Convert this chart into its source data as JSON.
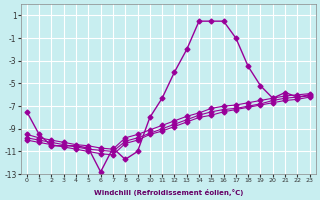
{
  "xlabel": "Windchill (Refroidissement éolien,°C)",
  "ylabel": "",
  "bg_color": "#c8eef0",
  "grid_color": "#ffffff",
  "line_color": "#990099",
  "hours": [
    0,
    1,
    2,
    3,
    4,
    5,
    6,
    7,
    8,
    9,
    10,
    11,
    12,
    13,
    14,
    15,
    16,
    17,
    18,
    19,
    20,
    21,
    22,
    23
  ],
  "main_curve": [
    -7.5,
    -9.5,
    -10.5,
    -10.5,
    -10.5,
    -10.7,
    -12.8,
    -10.7,
    -11.7,
    -11.0,
    -8.0,
    -6.3,
    -4.0,
    -2.0,
    0.5,
    0.5,
    0.5,
    -1.0,
    -3.5,
    -5.2,
    -6.3,
    -5.8,
    -6.2,
    -6.0
  ],
  "line2": [
    -9.5,
    -9.8,
    -10.0,
    -10.2,
    -10.4,
    -10.5,
    -10.7,
    -10.8,
    -9.8,
    -9.5,
    -9.1,
    -8.7,
    -8.3,
    -7.9,
    -7.6,
    -7.2,
    -7.0,
    -6.9,
    -6.7,
    -6.5,
    -6.3,
    -6.1,
    -6.0,
    -5.9
  ],
  "line3": [
    -9.8,
    -10.0,
    -10.2,
    -10.4,
    -10.6,
    -10.8,
    -10.9,
    -11.0,
    -10.1,
    -9.8,
    -9.4,
    -9.0,
    -8.6,
    -8.2,
    -7.8,
    -7.5,
    -7.3,
    -7.2,
    -7.0,
    -6.8,
    -6.5,
    -6.3,
    -6.2,
    -6.1
  ],
  "line4": [
    -10.0,
    -10.2,
    -10.4,
    -10.6,
    -10.8,
    -11.0,
    -11.2,
    -11.3,
    -10.3,
    -10.0,
    -9.5,
    -9.2,
    -8.8,
    -8.4,
    -8.0,
    -7.8,
    -7.5,
    -7.3,
    -7.1,
    -6.9,
    -6.7,
    -6.5,
    -6.4,
    -6.2
  ],
  "ylim": [
    -13,
    2
  ],
  "xlim": [
    0,
    23
  ],
  "yticks": [
    1,
    -1,
    -3,
    -5,
    -7,
    -9,
    -11,
    -13
  ],
  "xticks": [
    0,
    1,
    2,
    3,
    4,
    5,
    6,
    7,
    8,
    9,
    10,
    11,
    12,
    13,
    14,
    15,
    16,
    17,
    18,
    19,
    20,
    21,
    22,
    23
  ]
}
